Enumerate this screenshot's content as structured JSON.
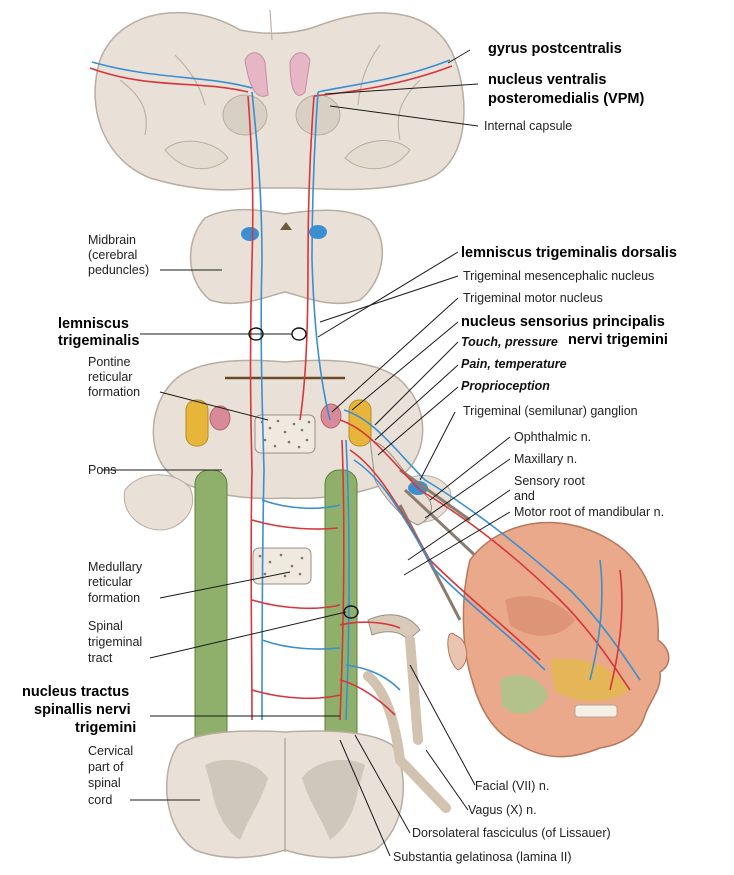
{
  "labels": {
    "gyrus_postcentralis": "gyrus postcentralis",
    "vpm_1": "nucleus ventralis",
    "vpm_2": "posteromedialis (VPM)",
    "internal_capsule": "Internal capsule",
    "midbrain_1": "Midbrain",
    "midbrain_2": "(cerebral",
    "midbrain_3": "peduncles)",
    "lemniscus_dorsalis": "lemniscus trigeminalis dorsalis",
    "mesencephalic_nucleus": "Trigeminal mesencephalic nucleus",
    "motor_nucleus": "Trigeminal motor nucleus",
    "lemniscus_trig_1": "lemniscus",
    "lemniscus_trig_2": "trigeminalis",
    "sensorius_1": "nucleus sensorius principalis",
    "sensorius_2": "nervi trigemini",
    "touch_pressure": "Touch, pressure",
    "pain_temperature": "Pain, temperature",
    "proprioception": "Proprioception",
    "pontine_1": "Pontine",
    "pontine_2": "reticular",
    "pontine_3": "formation",
    "ganglion": "Trigeminal (semilunar) ganglion",
    "ophthalmic": "Ophthalmic n.",
    "maxillary": "Maxillary n.",
    "pons": "Pons",
    "sensory_root_1": "Sensory root",
    "sensory_root_2": "and",
    "motor_root": "Motor root of mandibular n.",
    "medullary_1": "Medullary",
    "medullary_2": "reticular",
    "medullary_3": "formation",
    "spinal_tract_1": "Spinal",
    "spinal_tract_2": "trigeminal",
    "spinal_tract_3": "tract",
    "spinalis_1": "nucleus tractus",
    "spinalis_2": "spinallis nervi",
    "spinalis_3": "trigemini",
    "cervical_1": "Cervical",
    "cervical_2": "part of",
    "cervical_3": "spinal",
    "cervical_4": "cord",
    "facial": "Facial (VII) n.",
    "vagus": "Vagus (X) n.",
    "lissauer": "Dorsolateral fasciculus (of Lissauer)",
    "gelatinosa": "Substantia gelatinosa (lamina II)"
  },
  "colors": {
    "tissue": "#e9e1d8",
    "tissue_edge": "#b9aca0",
    "gray_matter": "#cfc6bc",
    "pathway_red": "#d6373c",
    "pathway_blue": "#3b8fd0",
    "tract_green": "#8fb06a",
    "nucleus_yellow": "#e6b53a",
    "skin": "#e9a98a"
  }
}
